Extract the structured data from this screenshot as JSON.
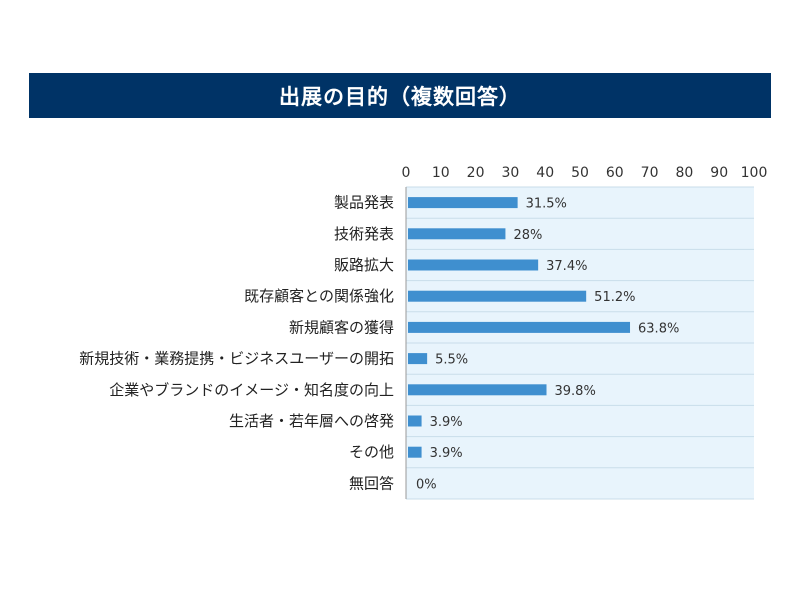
{
  "chart_data": {
    "type": "bar",
    "orientation": "horizontal",
    "title": "出展の目的（複数回答）",
    "categories": [
      "製品発表",
      "技術発表",
      "販路拡大",
      "既存顧客との関係強化",
      "新規顧客の獲得",
      "新規技術・業務提携・ビジネスユーザーの開拓",
      "企業やブランドのイメージ・知名度の向上",
      "生活者・若年層への啓発",
      "その他",
      "無回答"
    ],
    "values": [
      31.5,
      28,
      37.4,
      51.2,
      63.8,
      5.5,
      39.8,
      3.9,
      3.9,
      0
    ],
    "value_labels": [
      "31.5%",
      "28%",
      "37.4%",
      "51.2%",
      "63.8%",
      "5.5%",
      "39.8%",
      "3.9%",
      "3.9%",
      "0%"
    ],
    "xlim": [
      0,
      100
    ],
    "xticks": [
      "0",
      "10",
      "20",
      "30",
      "40",
      "50",
      "60",
      "70",
      "80",
      "90",
      "100"
    ],
    "xlabel": "",
    "ylabel": "",
    "grid": "horizontal row separators",
    "legend": "none",
    "colors": {
      "title_bg": "#003366",
      "bar": "#3f8fcf",
      "plot_bg": "#e8f4fc",
      "row_line": "#c9ddea"
    }
  }
}
